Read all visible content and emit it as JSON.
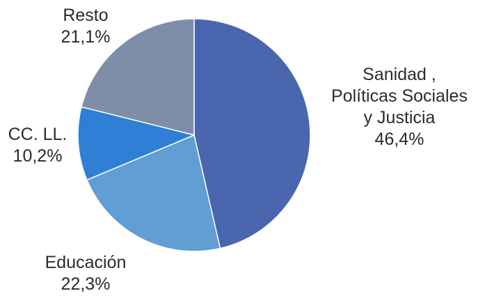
{
  "chart_data": {
    "type": "pie",
    "title": "",
    "start_angle_deg": 0,
    "direction": "clockwise",
    "slices": [
      {
        "label_lines": [
          "Sanidad ,",
          "Políticas Sociales",
          "y Justicia"
        ],
        "value": 46.4,
        "value_label": "46,4%",
        "color": "#4a66af"
      },
      {
        "label_lines": [
          "Educación"
        ],
        "value": 22.3,
        "value_label": "22,3%",
        "color": "#609ed4"
      },
      {
        "label_lines": [
          "CC. LL."
        ],
        "value": 10.2,
        "value_label": "10,2%",
        "color": "#2f7fd6"
      },
      {
        "label_lines": [
          "Resto"
        ],
        "value": 21.1,
        "value_label": "21,1%",
        "color": "#7e8ea8"
      }
    ]
  }
}
